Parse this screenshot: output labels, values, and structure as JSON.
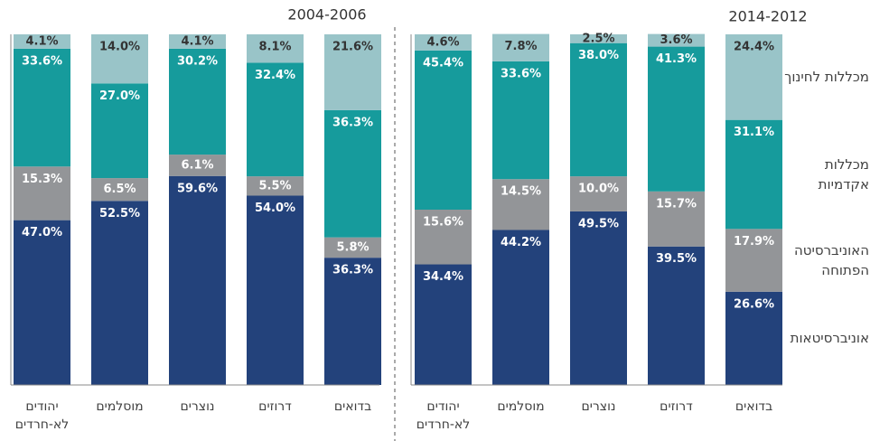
{
  "chart_data": [
    {
      "type": "bar",
      "stacked": true,
      "title": "2004-2006",
      "categories": [
        "יהודים לא-חרדים",
        "מוסלמים",
        "נוצרים",
        "דרוזים",
        "בדואים"
      ],
      "ylim": [
        0,
        100
      ],
      "series": [
        {
          "color": "#23427b",
          "values": [
            47.0,
            52.5,
            59.6,
            54.0,
            36.3
          ],
          "value_labels": [
            "47.0%",
            "52.5%",
            "59.6%",
            "54.0%",
            "36.3%"
          ]
        },
        {
          "color": "#939598",
          "values": [
            15.3,
            6.5,
            6.1,
            5.5,
            5.8
          ],
          "value_labels": [
            "15.3%",
            "6.5%",
            "6.1%",
            "5.5%",
            "5.8%"
          ]
        },
        {
          "color": "#169b9c",
          "values": [
            33.6,
            27.0,
            30.2,
            32.4,
            36.3
          ],
          "value_labels": [
            "33.6%",
            "27.0%",
            "30.2%",
            "32.4%",
            "36.3%"
          ]
        },
        {
          "color": "#99c4c8",
          "values": [
            4.1,
            14.0,
            4.1,
            8.1,
            21.6
          ],
          "value_labels": [
            "4.1%",
            "14.0%",
            "4.1%",
            "8.1%",
            "21.6%"
          ]
        }
      ]
    },
    {
      "type": "bar",
      "stacked": true,
      "title": "2014-2012",
      "categories": [
        "יהודים לא-חרדים",
        "מוסלמים",
        "נוצרים",
        "דרוזים",
        "בדואים"
      ],
      "ylim": [
        0,
        100
      ],
      "series": [
        {
          "name": "אוניברסיטאות",
          "color": "#23427b",
          "values": [
            34.4,
            44.2,
            49.5,
            39.5,
            26.6
          ],
          "value_labels": [
            "34.4%",
            "44.2%",
            "49.5%",
            "39.5%",
            "26.6%"
          ]
        },
        {
          "name": "האוניברסיטה הפתוחה",
          "color": "#939598",
          "values": [
            15.6,
            14.5,
            10.0,
            15.7,
            17.9
          ],
          "value_labels": [
            "15.6%",
            "14.5%",
            "10.0%",
            "15.7%",
            "17.9%"
          ]
        },
        {
          "name": "מכללות אקדמיות",
          "color": "#169b9c",
          "values": [
            45.4,
            33.6,
            38.0,
            41.3,
            31.1
          ],
          "value_labels": [
            "45.4%",
            "33.6%",
            "38.0%",
            "41.3%",
            "31.1%"
          ]
        },
        {
          "name": "מכללות לחינוך",
          "color": "#99c4c8",
          "values": [
            4.6,
            7.8,
            2.5,
            3.6,
            24.4
          ],
          "value_labels": [
            "4.6%",
            "7.8%",
            "2.5%",
            "3.6%",
            "24.4%"
          ]
        }
      ]
    }
  ]
}
